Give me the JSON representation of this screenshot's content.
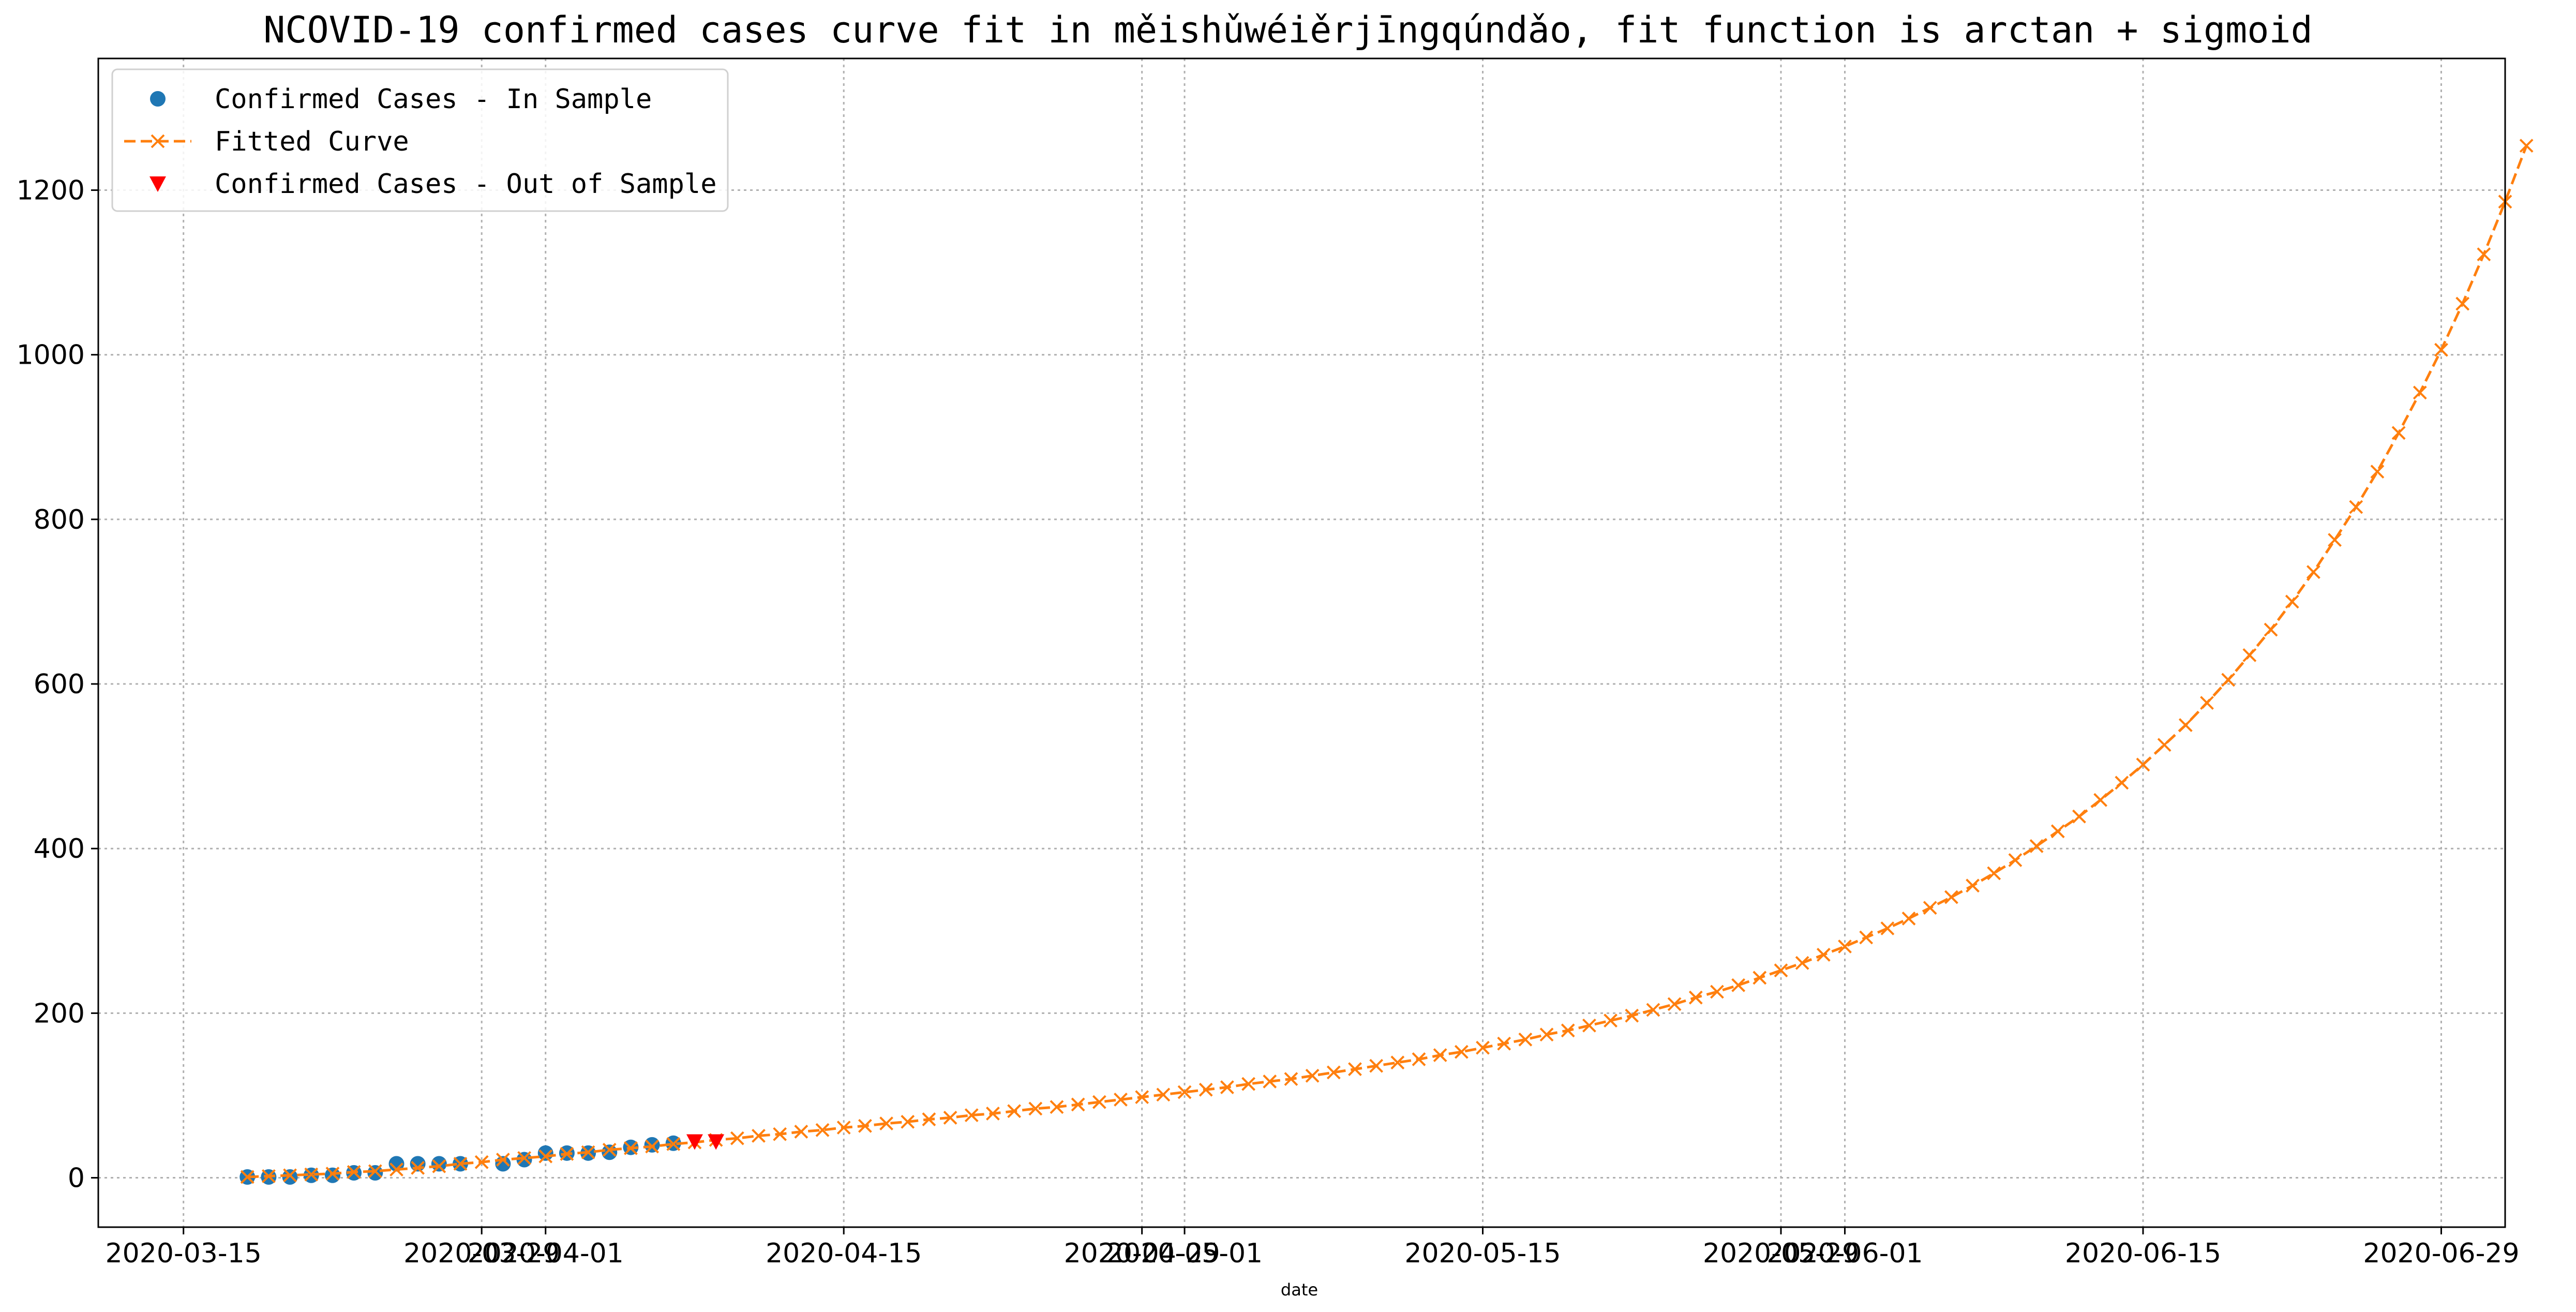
{
  "chart_data": {
    "type": "line",
    "title": "NCOVID-19 confirmed cases curve fit in měishǔwéiěrjīngqúndǎo, fit function is arctan + sigmoid",
    "xlabel": "date",
    "ylabel": "",
    "x_type": "date",
    "xlim": [
      "2020-03-11",
      "2020-07-02"
    ],
    "ylim": [
      -60,
      1360
    ],
    "x_ticks": [
      "2020-03-15",
      "2020-03-29",
      "2020-04-01",
      "2020-04-15",
      "2020-04-29",
      "2020-05-01",
      "2020-05-15",
      "2020-05-29",
      "2020-06-01",
      "2020-06-15",
      "2020-06-29"
    ],
    "y_ticks": [
      0,
      200,
      400,
      600,
      800,
      1000,
      1200
    ],
    "grid": true,
    "legend_position": "top-left",
    "colors": {
      "in_sample": "#1f77b4",
      "fitted": "#ff7f0e",
      "out_sample": "#ff0000"
    },
    "series": [
      {
        "name": "Confirmed Cases - In Sample",
        "style": "markers-circle",
        "points": [
          [
            "2020-03-18",
            1
          ],
          [
            "2020-03-19",
            1
          ],
          [
            "2020-03-20",
            1
          ],
          [
            "2020-03-21",
            3
          ],
          [
            "2020-03-22",
            3
          ],
          [
            "2020-03-23",
            6
          ],
          [
            "2020-03-24",
            6
          ],
          [
            "2020-03-25",
            17
          ],
          [
            "2020-03-26",
            17
          ],
          [
            "2020-03-27",
            17
          ],
          [
            "2020-03-28",
            17
          ],
          [
            "2020-03-30",
            17
          ],
          [
            "2020-03-31",
            22
          ],
          [
            "2020-04-01",
            30
          ],
          [
            "2020-04-02",
            30
          ],
          [
            "2020-04-03",
            30
          ],
          [
            "2020-04-04",
            31
          ],
          [
            "2020-04-05",
            37
          ],
          [
            "2020-04-06",
            40
          ],
          [
            "2020-04-07",
            42
          ]
        ]
      },
      {
        "name": "Fitted Curve",
        "style": "dashed-x",
        "x_start": "2020-03-18",
        "y": [
          1,
          2,
          3,
          4,
          5,
          7,
          8,
          10,
          12,
          14,
          17,
          19,
          22,
          24,
          26,
          29,
          31,
          34,
          36,
          38,
          41,
          43,
          46,
          48,
          51,
          53,
          56,
          58,
          61,
          63,
          66,
          68,
          71,
          73,
          76,
          78,
          81,
          84,
          86,
          89,
          92,
          95,
          98,
          101,
          104,
          107,
          110,
          114,
          117,
          120,
          124,
          128,
          132,
          136,
          140,
          144,
          149,
          153,
          158,
          163,
          168,
          174,
          179,
          185,
          191,
          197,
          204,
          211,
          219,
          226,
          234,
          243,
          252,
          261,
          271,
          281,
          292,
          303,
          315,
          328,
          341,
          355,
          370,
          386,
          403,
          421,
          439,
          459,
          480,
          502,
          526,
          550,
          577,
          605,
          635,
          666,
          700,
          736,
          775,
          815,
          858,
          905,
          954,
          1006,
          1062,
          1122,
          1186,
          1254
        ]
      },
      {
        "name": "Confirmed Cases - Out of Sample",
        "style": "markers-triangle-down",
        "points": [
          [
            "2020-04-08",
            44
          ],
          [
            "2020-04-09",
            44
          ]
        ]
      }
    ]
  }
}
